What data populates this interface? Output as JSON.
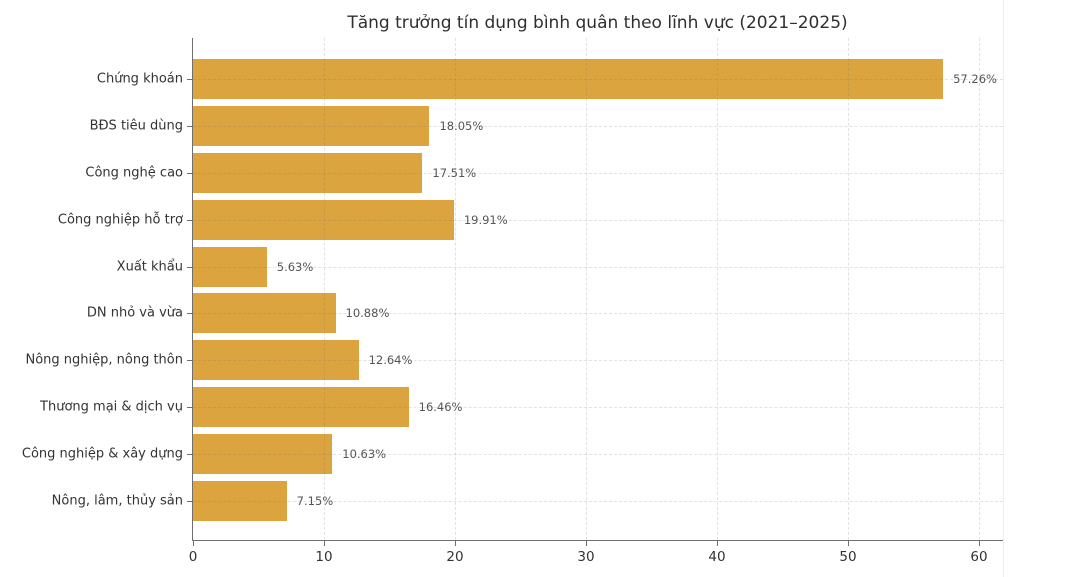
{
  "chart_data": {
    "type": "bar",
    "orientation": "horizontal",
    "title": "Tăng trưởng tín dụng bình quân theo lĩnh vực (2021–2025)",
    "categories": [
      "Chứng khoán",
      "BĐS tiêu dùng",
      "Công nghệ cao",
      "Công nghiệp hỗ trợ",
      "Xuất khẩu",
      "DN nhỏ và vừa",
      "Nông nghiệp, nông thôn",
      "Thương mại & dịch vụ",
      "Công nghiệp & xây dựng",
      "Nông, lâm, thủy sản"
    ],
    "values": [
      57.26,
      18.05,
      17.51,
      19.91,
      5.63,
      10.88,
      12.64,
      16.46,
      10.63,
      7.15
    ],
    "value_labels": [
      "57.26%",
      "18.05%",
      "17.51%",
      "19.91%",
      "5.63%",
      "10.88%",
      "12.64%",
      "16.46%",
      "10.63%",
      "7.15%"
    ],
    "x_ticks": [
      0,
      10,
      20,
      30,
      40,
      50,
      60
    ],
    "x_tick_labels": [
      "0",
      "10",
      "20",
      "30",
      "40",
      "50",
      "60"
    ],
    "xlim": [
      0,
      62
    ],
    "xlabel": "",
    "ylabel": "",
    "legend": "none",
    "grid": {
      "style": "dashed",
      "axes": "both",
      "color": "#e4e4e4"
    },
    "bar_color": "#DCA43E",
    "spine_color": "#6e6e6e",
    "title_color": "#2f2f2f",
    "label_color": "#333333",
    "value_label_color": "#555555",
    "background_color": "#ffffff"
  }
}
